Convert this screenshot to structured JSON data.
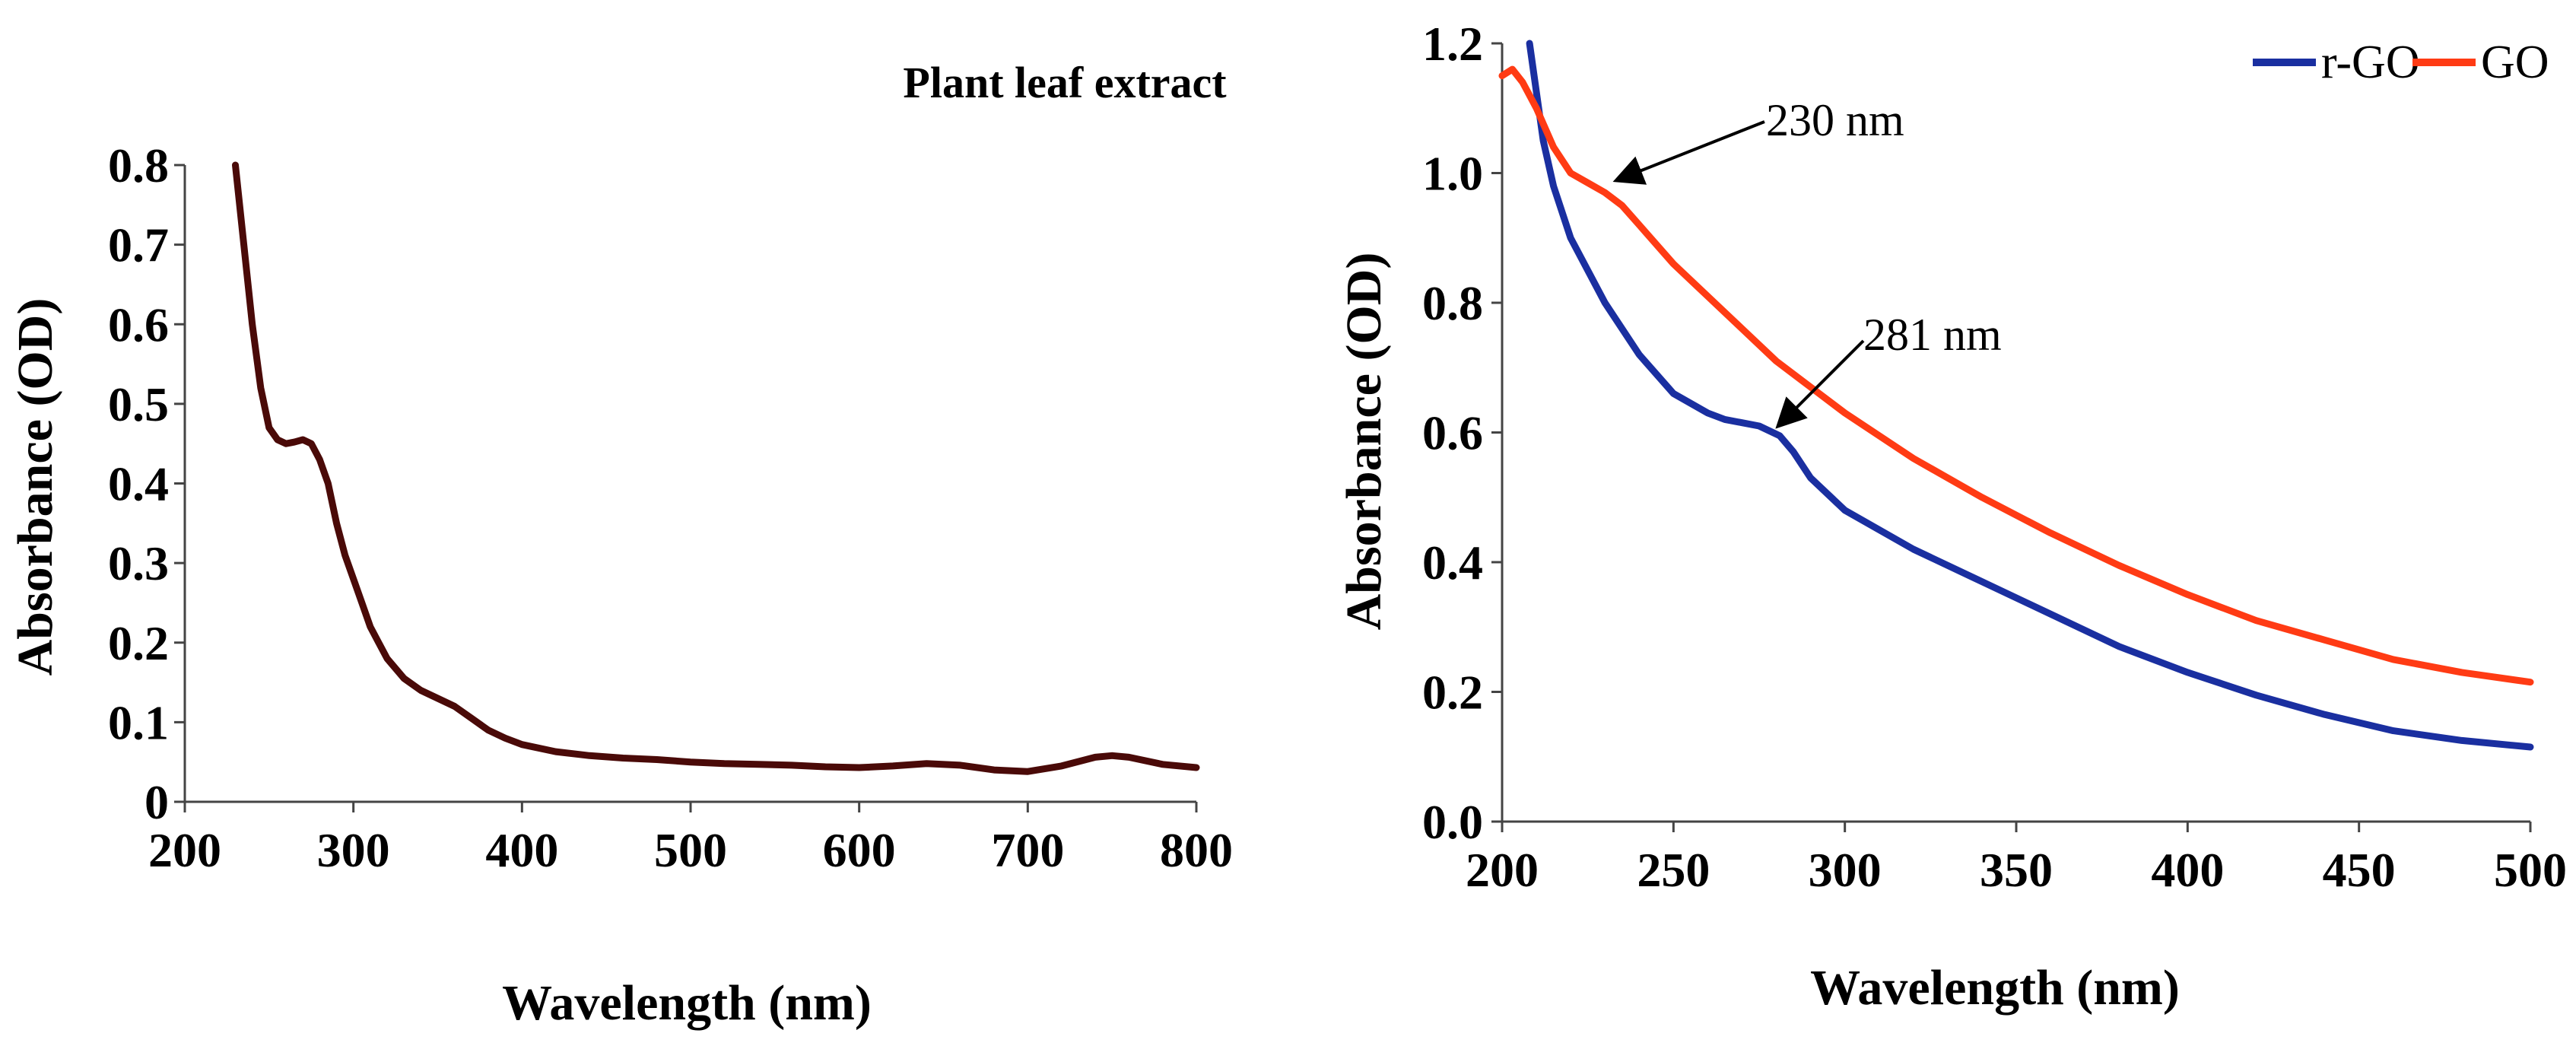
{
  "chart_data": [
    {
      "type": "line",
      "title": "Plant leaf extract",
      "xlabel": "Wavelength (nm)",
      "ylabel": "Absorbance (OD)",
      "xlim": [
        200,
        800
      ],
      "ylim": [
        0,
        0.8
      ],
      "x_ticks": [
        200,
        300,
        400,
        500,
        600,
        700,
        800
      ],
      "y_ticks": [
        "0",
        "0.1",
        "0.2",
        "0.3",
        "0.4",
        "0.5",
        "0.6",
        "0.7",
        "0.8"
      ],
      "grid": false,
      "series": [
        {
          "name": "Plant leaf extract",
          "color": "#4a0a08",
          "x": [
            230,
            235,
            240,
            245,
            250,
            255,
            260,
            265,
            270,
            275,
            280,
            285,
            290,
            295,
            300,
            305,
            310,
            315,
            320,
            330,
            340,
            350,
            360,
            370,
            380,
            390,
            400,
            420,
            440,
            460,
            480,
            500,
            520,
            540,
            560,
            580,
            600,
            620,
            640,
            660,
            680,
            700,
            720,
            740,
            750,
            760,
            780,
            800
          ],
          "y": [
            0.8,
            0.7,
            0.6,
            0.52,
            0.47,
            0.455,
            0.45,
            0.452,
            0.455,
            0.45,
            0.43,
            0.4,
            0.35,
            0.31,
            0.28,
            0.25,
            0.22,
            0.2,
            0.18,
            0.155,
            0.14,
            0.13,
            0.12,
            0.105,
            0.09,
            0.08,
            0.072,
            0.063,
            0.058,
            0.055,
            0.053,
            0.05,
            0.048,
            0.047,
            0.046,
            0.044,
            0.043,
            0.045,
            0.048,
            0.046,
            0.04,
            0.038,
            0.045,
            0.056,
            0.058,
            0.056,
            0.047,
            0.043
          ]
        }
      ]
    },
    {
      "type": "line",
      "title": "",
      "xlabel": "Wavelength (nm)",
      "ylabel": "Absorbance (OD)",
      "xlim": [
        200,
        500
      ],
      "ylim": [
        0,
        1.2
      ],
      "x_ticks": [
        200,
        250,
        300,
        350,
        400,
        450,
        500
      ],
      "y_ticks": [
        "0.0",
        "0.2",
        "0.4",
        "0.6",
        "0.8",
        "1.0",
        "1.2"
      ],
      "grid": false,
      "legend": "top-right",
      "series": [
        {
          "name": "r-GO",
          "color": "#1a2fa0",
          "x": [
            208,
            212,
            215,
            220,
            230,
            240,
            250,
            260,
            265,
            270,
            275,
            281,
            285,
            290,
            300,
            320,
            340,
            360,
            380,
            400,
            420,
            440,
            460,
            480,
            500
          ],
          "y": [
            1.2,
            1.05,
            0.98,
            0.9,
            0.8,
            0.72,
            0.66,
            0.63,
            0.62,
            0.615,
            0.61,
            0.595,
            0.57,
            0.53,
            0.48,
            0.42,
            0.37,
            0.32,
            0.27,
            0.23,
            0.195,
            0.165,
            0.14,
            0.125,
            0.115
          ]
        },
        {
          "name": "GO",
          "color": "#ff3b14",
          "x": [
            200,
            203,
            206,
            210,
            215,
            220,
            225,
            230,
            235,
            240,
            250,
            260,
            270,
            280,
            290,
            300,
            320,
            340,
            360,
            380,
            400,
            420,
            440,
            460,
            480,
            500
          ],
          "y": [
            1.15,
            1.16,
            1.14,
            1.1,
            1.04,
            1.0,
            0.985,
            0.97,
            0.95,
            0.92,
            0.86,
            0.81,
            0.76,
            0.71,
            0.67,
            0.63,
            0.56,
            0.5,
            0.445,
            0.395,
            0.35,
            0.31,
            0.28,
            0.25,
            0.23,
            0.215
          ]
        }
      ],
      "annotations": [
        {
          "text": "230 nm",
          "points_to": {
            "x": 231,
            "y": 0.98
          }
        },
        {
          "text": "281 nm",
          "points_to": {
            "x": 281,
            "y": 0.595
          }
        }
      ]
    }
  ]
}
